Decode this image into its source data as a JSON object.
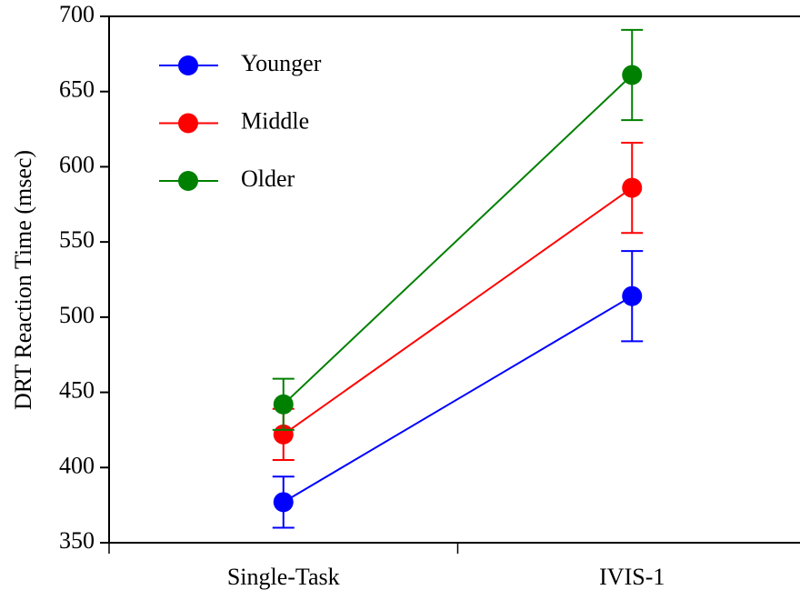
{
  "chart_data": {
    "type": "line",
    "y_label": "DRT Reaction Time (msec)",
    "categories": [
      "Single-Task",
      "IVIS-1"
    ],
    "series": [
      {
        "name": "Younger",
        "color": "#0000ff",
        "values": [
          377,
          514
        ],
        "errors": [
          17,
          30
        ]
      },
      {
        "name": "Middle",
        "color": "#ff0000",
        "values": [
          422,
          586
        ],
        "errors": [
          17,
          30
        ]
      },
      {
        "name": "Older",
        "color": "#008000",
        "values": [
          442,
          661
        ],
        "errors": [
          17,
          30
        ]
      }
    ],
    "ylim": [
      350,
      700
    ],
    "yticks": [
      350,
      400,
      450,
      500,
      550,
      600,
      650,
      700
    ],
    "legend": "upper-left"
  }
}
